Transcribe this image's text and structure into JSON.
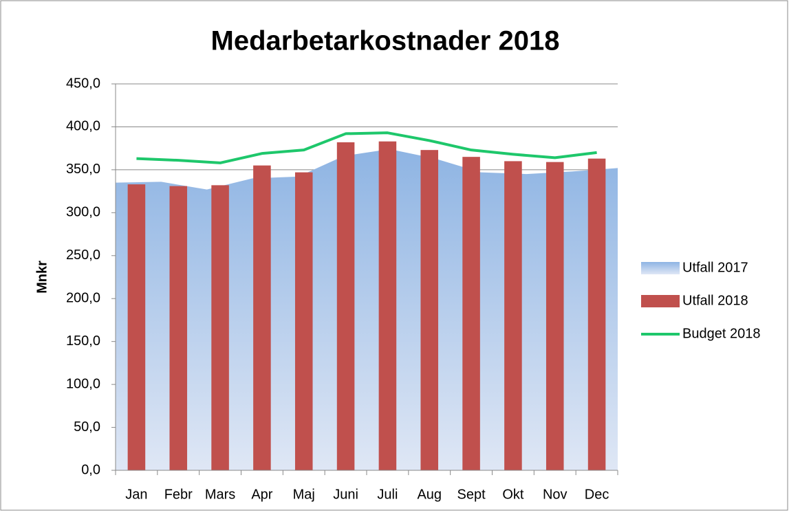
{
  "chart_data": {
    "type": "combo",
    "title": "Medarbetarkostnader 2018",
    "y_label": "Mnkr",
    "categories": [
      "Jan",
      "Febr",
      "Mars",
      "Apr",
      "Maj",
      "Juni",
      "Juli",
      "Aug",
      "Sept",
      "Okt",
      "Nov",
      "Dec"
    ],
    "series": [
      {
        "name": "Utfall 2017",
        "type": "area",
        "color": "#8eb4e3",
        "values": [
          335,
          336,
          327,
          340,
          342,
          366,
          374,
          363,
          347,
          345,
          348,
          352
        ]
      },
      {
        "name": "Utfall 2018",
        "type": "bar",
        "color": "#c0504d",
        "values": [
          333,
          331,
          332,
          355,
          347,
          382,
          383,
          373,
          365,
          360,
          359,
          363
        ]
      },
      {
        "name": "Budget 2018",
        "type": "line",
        "color": "#1ec76b",
        "values": [
          363,
          361,
          358,
          369,
          373,
          392,
          393,
          384,
          373,
          368,
          364,
          370
        ]
      }
    ],
    "ylim": [
      0,
      450
    ],
    "yticks": [
      {
        "value": 0,
        "label": "0,0"
      },
      {
        "value": 50,
        "label": "50,0"
      },
      {
        "value": 100,
        "label": "100,0"
      },
      {
        "value": 150,
        "label": "150,0"
      },
      {
        "value": 200,
        "label": "200,0"
      },
      {
        "value": 250,
        "label": "250,0"
      },
      {
        "value": 300,
        "label": "300,0"
      },
      {
        "value": 350,
        "label": "350,0"
      },
      {
        "value": 400,
        "label": "400,0"
      },
      {
        "value": 450,
        "label": "450,0"
      }
    ],
    "grid": true,
    "legend": "right"
  }
}
